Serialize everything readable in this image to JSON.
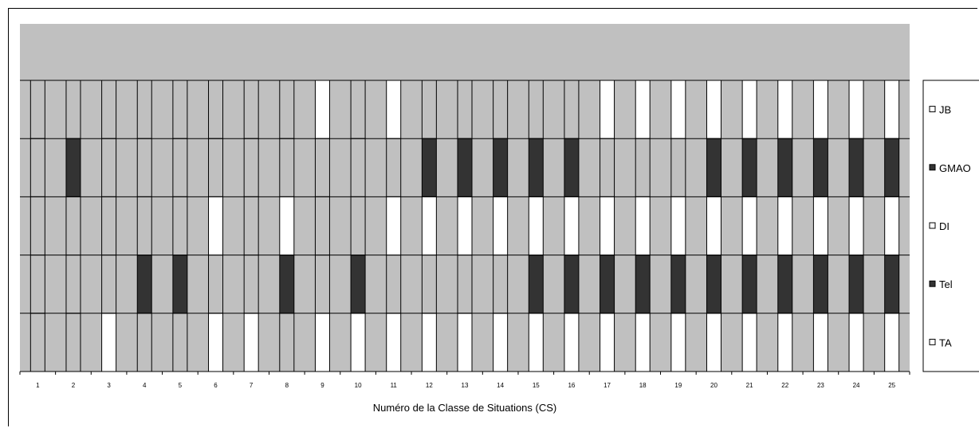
{
  "chart_data": {
    "type": "table",
    "xlabel": "Numéro de la Classe de Situations (CS)",
    "categories": [
      "1",
      "2",
      "3",
      "4",
      "5",
      "6",
      "7",
      "8",
      "9",
      "10",
      "11",
      "12",
      "13",
      "14",
      "15",
      "16",
      "17",
      "18",
      "19",
      "20",
      "21",
      "22",
      "23",
      "24",
      "25"
    ],
    "rows": [
      {
        "name": "JB",
        "fill": "white"
      },
      {
        "name": "GMAO",
        "fill": "dark"
      },
      {
        "name": "DI",
        "fill": "white"
      },
      {
        "name": "Tel",
        "fill": "dark"
      },
      {
        "name": "TA",
        "fill": "white"
      }
    ],
    "legend": [
      "JB",
      "GMAO",
      "DI",
      "Tel",
      "TA"
    ],
    "legend_position": "right",
    "values": {
      "JB": [
        0,
        0,
        0,
        0,
        0,
        0,
        0,
        0,
        1,
        0,
        1,
        0,
        0,
        0,
        0,
        0,
        1,
        1,
        1,
        1,
        1,
        1,
        1,
        1,
        1
      ],
      "GMAO": [
        0,
        1,
        0,
        0,
        0,
        0,
        0,
        0,
        0,
        0,
        0,
        1,
        1,
        1,
        1,
        1,
        0,
        0,
        0,
        1,
        1,
        1,
        1,
        1,
        1
      ],
      "DI": [
        0,
        0,
        0,
        0,
        0,
        1,
        0,
        1,
        0,
        0,
        1,
        1,
        1,
        1,
        1,
        1,
        1,
        1,
        1,
        1,
        1,
        1,
        1,
        1,
        1
      ],
      "Tel": [
        0,
        0,
        0,
        1,
        1,
        0,
        0,
        1,
        0,
        1,
        0,
        0,
        0,
        0,
        1,
        1,
        1,
        1,
        1,
        1,
        1,
        1,
        1,
        1,
        1
      ],
      "TA": [
        0,
        0,
        1,
        0,
        0,
        1,
        1,
        0,
        1,
        1,
        1,
        1,
        1,
        1,
        1,
        1,
        1,
        1,
        1,
        1,
        1,
        1,
        1,
        1,
        1
      ]
    },
    "colors": {
      "background": "#c0c0c0",
      "dark": "#333333",
      "white": "#ffffff",
      "empty": "#c0c0c0"
    }
  }
}
